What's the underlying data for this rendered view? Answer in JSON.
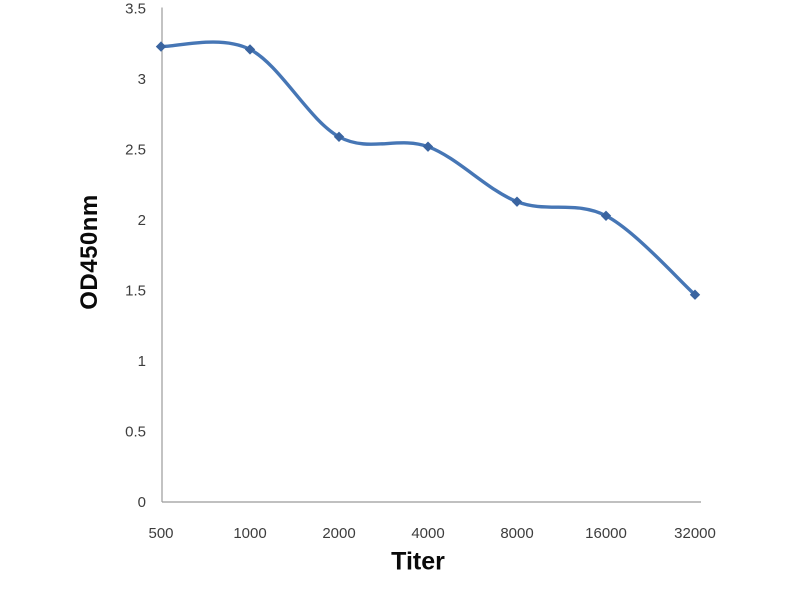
{
  "chart_data": {
    "type": "line",
    "title": "",
    "xlabel": "Titer",
    "ylabel": "OD450nm",
    "categories": [
      "500",
      "1000",
      "2000",
      "4000",
      "8000",
      "16000",
      "32000"
    ],
    "series": [
      {
        "name": "OD450nm",
        "values": [
          3.23,
          3.21,
          2.59,
          2.52,
          2.13,
          2.03,
          1.47
        ]
      }
    ],
    "ylim": [
      0,
      3.5
    ],
    "y_ticks": [
      3.5,
      3,
      2.5,
      2,
      1.5,
      1,
      0.5,
      0
    ],
    "y_tick_labels": [
      "3.5",
      "3",
      "2.5",
      "2",
      "1.5",
      "1",
      "0.5",
      "0"
    ],
    "x_axis_scale": "category (doubling dilution)",
    "grid": "off",
    "legend": "none",
    "smooth": true,
    "marker": "diamond",
    "colors": {
      "background": "#ffffff",
      "line": "#4676b5",
      "marker": "#3a64a0",
      "axis": "#9b9b9b",
      "tick_label": "#3d3d3d",
      "axis_title": "#0a0a0a"
    }
  }
}
